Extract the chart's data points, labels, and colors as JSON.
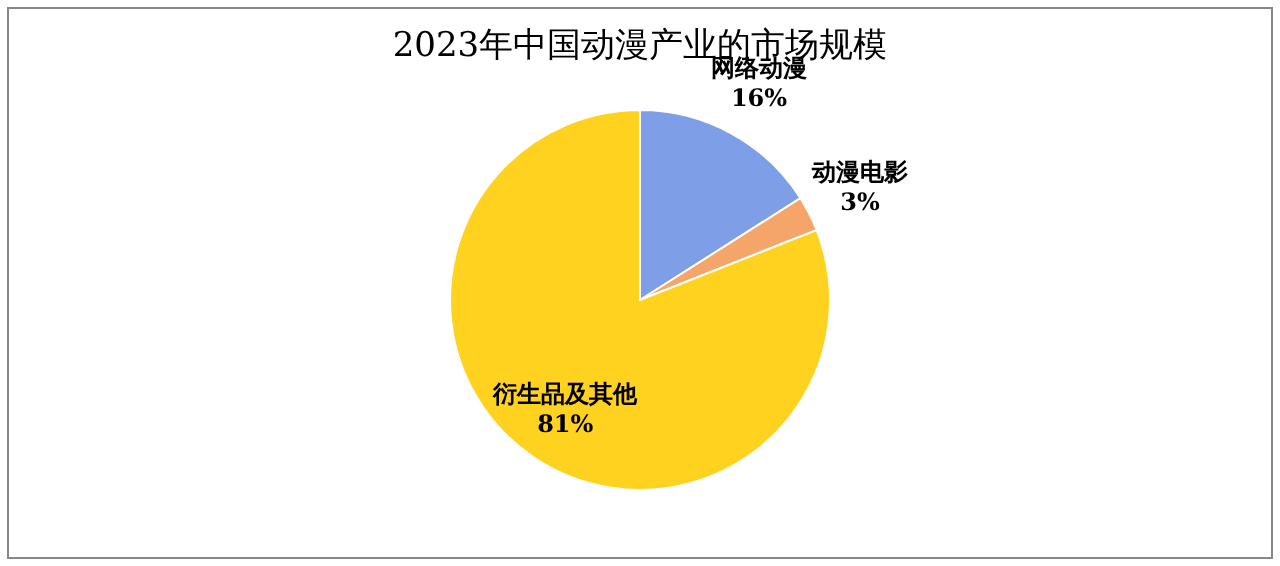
{
  "chart_data": {
    "type": "pie",
    "title": "2023年中国动漫产业的市场规模",
    "categories": [
      "网络动漫",
      "动漫电影",
      "衍生品及其他"
    ],
    "values": [
      16,
      3,
      81
    ],
    "colors": [
      "#7f9ee8",
      "#f5a46a",
      "#ffd21f"
    ],
    "value_labels": [
      "16%",
      "3%",
      "81%"
    ]
  }
}
